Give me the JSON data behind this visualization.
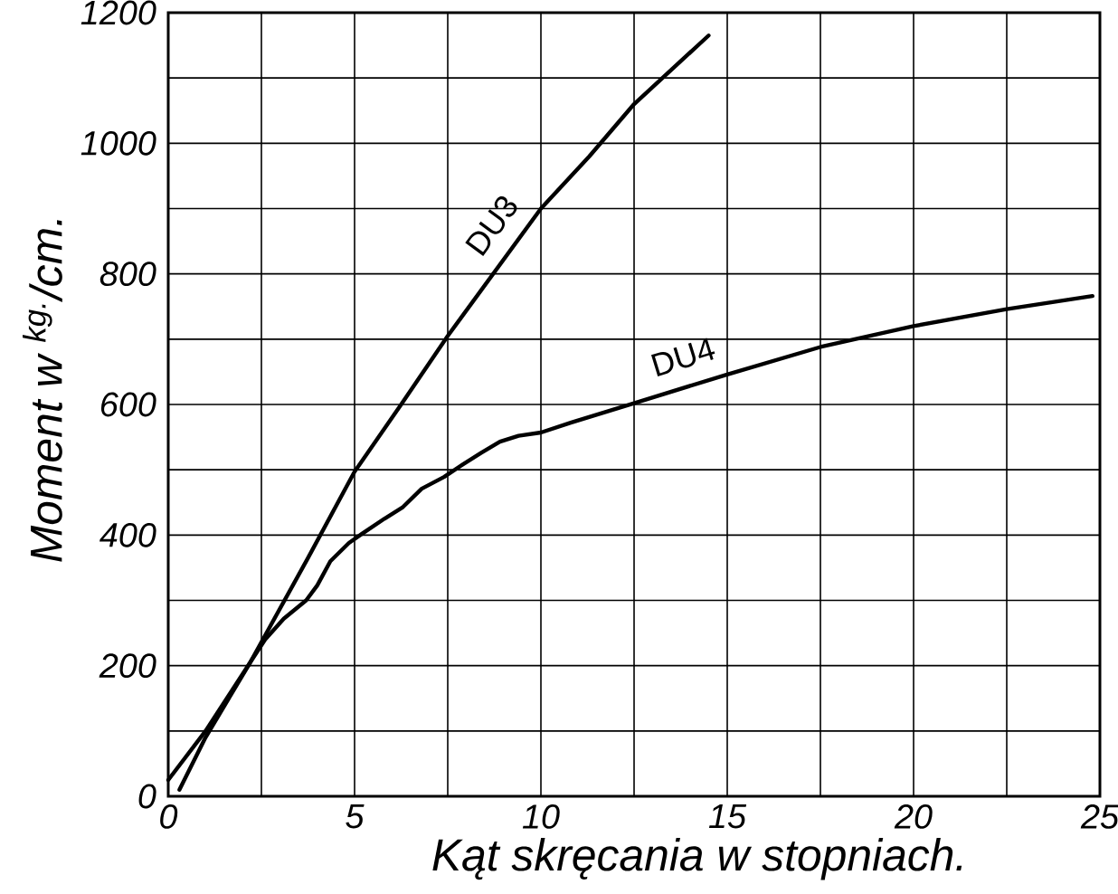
{
  "chart_data": {
    "type": "line",
    "xlabel": "Kąt skręcania w stopniach.",
    "ylabel": "Moment w $^{kg.}$/cm.",
    "xlim": [
      0,
      25
    ],
    "ylim": [
      0,
      1200
    ],
    "xticks": [
      0,
      {
        "value": 2.5,
        "label": null
      },
      5,
      {
        "value": 7.5,
        "label": null
      },
      10,
      {
        "value": 12.5,
        "label": null
      },
      15,
      {
        "value": 17.5,
        "label": null
      },
      20,
      {
        "value": 22.5,
        "label": null
      },
      25
    ],
    "yticks": [
      0,
      {
        "value": 100,
        "label": null
      },
      200,
      {
        "value": 300,
        "label": null
      },
      400,
      {
        "value": 500,
        "label": null
      },
      600,
      {
        "value": 700,
        "label": null
      },
      800,
      {
        "value": 900,
        "label": null
      },
      1000,
      {
        "value": 1100,
        "label": null
      },
      1200
    ],
    "grid": true,
    "series": [
      {
        "name": "DU3",
        "color": "#000000",
        "x": [
          0.3,
          1,
          2.2,
          3.75,
          5,
          6.25,
          7.5,
          10,
          11.3,
          12.5,
          14.5
        ],
        "values": [
          10,
          90,
          205,
          365,
          497,
          600,
          705,
          900,
          980,
          1060,
          1165
        ]
      },
      {
        "name": "DU4",
        "color": "#000000",
        "x": [
          0,
          1,
          2.2,
          2.6,
          3.1,
          3.7,
          4.0,
          4.35,
          4.85,
          5.2,
          5.8,
          6.3,
          6.8,
          7.4,
          7.9,
          8.4,
          8.9,
          9.4,
          10,
          10.8,
          12.5,
          15,
          17.5,
          20,
          22.5,
          24.8
        ],
        "values": [
          25,
          100,
          205,
          240,
          272,
          300,
          323,
          360,
          388,
          402,
          425,
          443,
          471,
          489,
          508,
          526,
          543,
          552,
          557,
          572,
          602,
          646,
          688,
          720,
          746,
          766
        ]
      }
    ]
  }
}
